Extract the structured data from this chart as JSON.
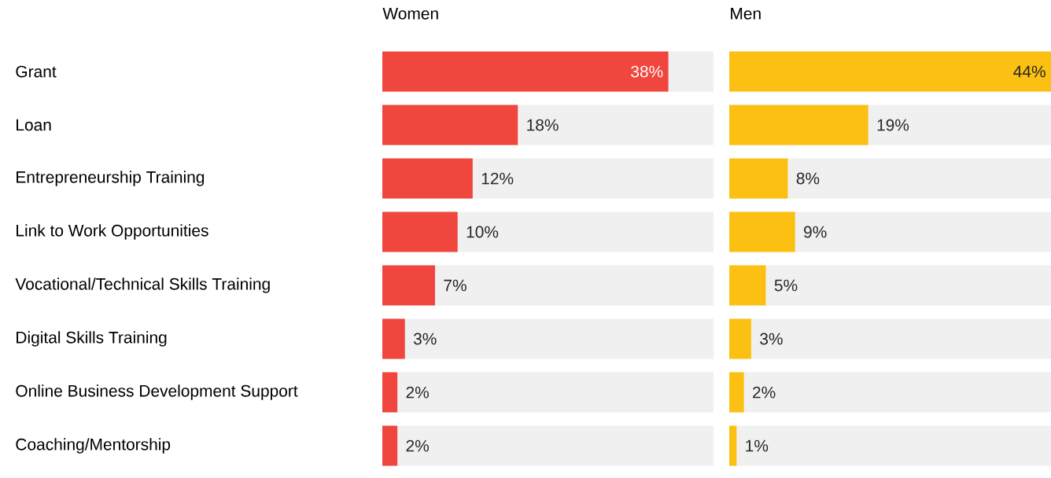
{
  "chart_data": [
    {
      "type": "bar",
      "orientation": "horizontal",
      "title": "Women",
      "categories": [
        "Grant",
        "Loan",
        "Entrepreneurship Training",
        "Link to Work Opportunities",
        "Vocational/Technical Skills Training",
        "Digital Skills Training",
        "Online Business Development Support",
        "Coaching/Mentorship"
      ],
      "values": [
        38,
        18,
        12,
        10,
        7,
        3,
        2,
        2
      ],
      "value_labels": [
        "38%",
        "18%",
        "12%",
        "10%",
        "7%",
        "3%",
        "2%",
        "2%"
      ],
      "color": "#f0463e",
      "xlim": [
        0,
        44
      ],
      "tick_labels": "y"
    },
    {
      "type": "bar",
      "orientation": "horizontal",
      "title": "Men",
      "values": [
        44,
        19,
        8,
        9,
        5,
        3,
        2,
        1
      ],
      "value_labels": [
        "44%",
        "19%",
        "8%",
        "9%",
        "5%",
        "3%",
        "2%",
        "1%"
      ],
      "color": "#fcc012",
      "xlim": [
        0,
        44
      ],
      "tick_labels": false
    }
  ]
}
